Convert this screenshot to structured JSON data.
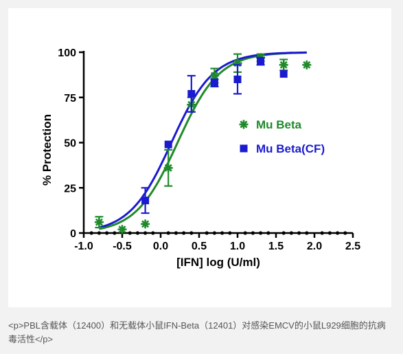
{
  "colors": {
    "mu_beta": "#1f8a2a",
    "mu_beta_cf": "#1a1ad0",
    "axis": "#000000",
    "caption_text": "#555555",
    "card_bg": "#ffffff",
    "page_bg": "#f2f2f2"
  },
  "caption": "<p>PBL含载体（12400）和无载体小鼠IFN-Beta（12401）对感染EMCV的小鼠L929细胞的抗病毒活性</p>",
  "chart_data": {
    "type": "scatter",
    "title": "",
    "xlabel": "[IFN] log (U/ml)",
    "ylabel": "% Protection",
    "xlim": [
      -1.0,
      2.5
    ],
    "ylim": [
      0,
      100
    ],
    "xticks": [
      -1.0,
      -0.5,
      0.0,
      0.5,
      1.0,
      1.5,
      2.0,
      2.5
    ],
    "xtick_labels": [
      "-1.0",
      "-0.5",
      "0.0",
      "0.5",
      "1.0",
      "1.5",
      "2.0",
      "2.5"
    ],
    "yticks": [
      0,
      25,
      50,
      75,
      100
    ],
    "ytick_labels": [
      "0",
      "25",
      "50",
      "75",
      "100"
    ],
    "grid": false,
    "legend_position": "right-middle",
    "series": [
      {
        "name": "Mu Beta",
        "marker": "asterisk",
        "points": [
          {
            "x": -0.8,
            "y": 6,
            "err": 3
          },
          {
            "x": -0.5,
            "y": 2,
            "err": 0
          },
          {
            "x": -0.2,
            "y": 5,
            "err": 0
          },
          {
            "x": 0.1,
            "y": 36,
            "err": 10
          },
          {
            "x": 0.4,
            "y": 71,
            "err": 4
          },
          {
            "x": 0.7,
            "y": 87,
            "err": 4
          },
          {
            "x": 1.0,
            "y": 94,
            "err": 5
          },
          {
            "x": 1.3,
            "y": 97,
            "err": 2
          },
          {
            "x": 1.6,
            "y": 93,
            "err": 3
          },
          {
            "x": 1.9,
            "y": 93,
            "err": 0
          }
        ],
        "fit": {
          "model": "sigmoid",
          "bottom": 0,
          "top": 100,
          "logEC50": 0.22,
          "hill": 1.6,
          "x_range": [
            -0.8,
            1.9
          ]
        }
      },
      {
        "name": "Mu Beta(CF)",
        "marker": "square",
        "points": [
          {
            "x": -0.2,
            "y": 18,
            "err": 7
          },
          {
            "x": 0.1,
            "y": 49,
            "err": 0
          },
          {
            "x": 0.4,
            "y": 77,
            "err": 10
          },
          {
            "x": 0.7,
            "y": 83,
            "err": 2
          },
          {
            "x": 1.0,
            "y": 85,
            "err": 8
          },
          {
            "x": 1.3,
            "y": 95,
            "err": 2
          },
          {
            "x": 1.6,
            "y": 88,
            "err": 0
          }
        ],
        "fit": {
          "model": "sigmoid",
          "bottom": 0,
          "top": 100,
          "logEC50": 0.14,
          "hill": 1.6,
          "x_range": [
            -0.8,
            1.9
          ]
        }
      }
    ]
  }
}
